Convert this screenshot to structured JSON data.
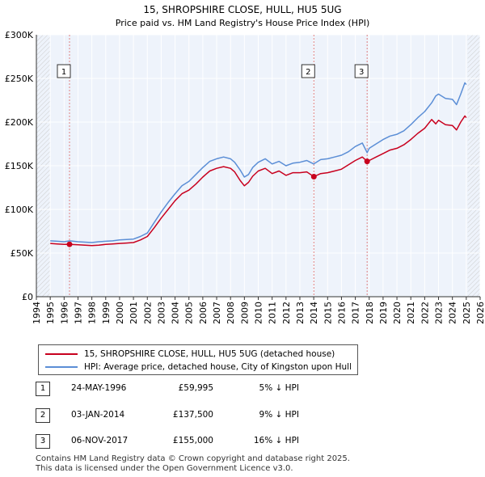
{
  "chart_data": {
    "type": "line",
    "title": "15, SHROPSHIRE CLOSE, HULL, HU5 5UG",
    "subtitle": "Price paid vs. HM Land Registry's House Price Index (HPI)",
    "xlabel": "",
    "ylabel": "",
    "xlim": [
      1994,
      2026
    ],
    "ylim": [
      0,
      300000
    ],
    "x_ticks": [
      "1994",
      "1995",
      "1996",
      "1997",
      "1998",
      "1999",
      "2000",
      "2001",
      "2002",
      "2003",
      "2004",
      "2005",
      "2006",
      "2007",
      "2008",
      "2009",
      "2010",
      "2011",
      "2012",
      "2013",
      "2014",
      "2015",
      "2016",
      "2017",
      "2018",
      "2019",
      "2020",
      "2021",
      "2022",
      "2023",
      "2024",
      "2025",
      "2026"
    ],
    "y_ticks": [
      {
        "value": 0,
        "label": "£0"
      },
      {
        "value": 50000,
        "label": "£50K"
      },
      {
        "value": 100000,
        "label": "£100K"
      },
      {
        "value": 150000,
        "label": "£150K"
      },
      {
        "value": 200000,
        "label": "£200K"
      },
      {
        "value": 250000,
        "label": "£250K"
      },
      {
        "value": 300000,
        "label": "£300K"
      }
    ],
    "series": [
      {
        "name": "HPI: Average price, detached house, City of Kingston upon Hull",
        "color": "#5b8ed6",
        "x": [
          1995.0,
          1995.5,
          1996.0,
          1996.4,
          1997.0,
          1997.5,
          1998.0,
          1998.5,
          1999.0,
          1999.5,
          2000.0,
          2000.5,
          2001.0,
          2001.5,
          2002.0,
          2002.5,
          2003.0,
          2003.5,
          2004.0,
          2004.5,
          2005.0,
          2005.5,
          2006.0,
          2006.5,
          2007.0,
          2007.5,
          2008.0,
          2008.3,
          2008.7,
          2009.0,
          2009.3,
          2009.6,
          2010.0,
          2010.5,
          2011.0,
          2011.5,
          2012.0,
          2012.5,
          2013.0,
          2013.5,
          2014.0,
          2014.5,
          2015.0,
          2015.5,
          2016.0,
          2016.5,
          2017.0,
          2017.5,
          2017.85,
          2018.0,
          2018.5,
          2019.0,
          2019.5,
          2020.0,
          2020.5,
          2021.0,
          2021.5,
          2022.0,
          2022.5,
          2022.8,
          2023.0,
          2023.5,
          2024.0,
          2024.3,
          2024.6,
          2024.9,
          2025.0
        ],
        "values": [
          64000,
          63500,
          63000,
          64000,
          63000,
          62500,
          62000,
          63000,
          63500,
          64000,
          65000,
          65500,
          66000,
          69000,
          73000,
          85000,
          97000,
          108000,
          118000,
          127000,
          132000,
          140000,
          148000,
          155000,
          158000,
          160000,
          158000,
          154000,
          145000,
          137000,
          140000,
          148000,
          154000,
          158000,
          152000,
          155000,
          150000,
          153000,
          154000,
          156000,
          152000,
          157000,
          158000,
          160000,
          162000,
          166000,
          172000,
          176000,
          165000,
          170000,
          175000,
          180000,
          184000,
          186000,
          190000,
          197000,
          205000,
          212000,
          222000,
          230000,
          232000,
          227000,
          226000,
          220000,
          232000,
          245000,
          243000
        ]
      },
      {
        "name": "15, SHROPSHIRE CLOSE, HULL, HU5 5UG (detached house)",
        "color": "#c8001e",
        "x": [
          1995.0,
          1995.5,
          1996.0,
          1996.4,
          1997.0,
          1997.5,
          1998.0,
          1998.5,
          1999.0,
          1999.5,
          2000.0,
          2000.5,
          2001.0,
          2001.5,
          2002.0,
          2002.5,
          2003.0,
          2003.5,
          2004.0,
          2004.5,
          2005.0,
          2005.5,
          2006.0,
          2006.5,
          2007.0,
          2007.5,
          2008.0,
          2008.3,
          2008.7,
          2009.0,
          2009.3,
          2009.6,
          2010.0,
          2010.5,
          2011.0,
          2011.5,
          2012.0,
          2012.5,
          2013.0,
          2013.5,
          2014.01,
          2014.5,
          2015.0,
          2015.5,
          2016.0,
          2016.5,
          2017.0,
          2017.5,
          2017.85,
          2018.0,
          2018.5,
          2019.0,
          2019.5,
          2020.0,
          2020.5,
          2021.0,
          2021.5,
          2022.0,
          2022.5,
          2022.8,
          2023.0,
          2023.5,
          2024.0,
          2024.3,
          2024.6,
          2024.9,
          2025.0
        ],
        "values": [
          61000,
          60500,
          60000,
          59995,
          59500,
          59000,
          58500,
          59000,
          60000,
          60500,
          61000,
          61500,
          62000,
          65000,
          69000,
          79000,
          90000,
          100000,
          110000,
          118000,
          122000,
          129000,
          137000,
          144000,
          147000,
          149000,
          147000,
          143000,
          133000,
          127000,
          131000,
          138000,
          144000,
          147000,
          141000,
          144000,
          139000,
          142000,
          142000,
          143000,
          137500,
          141000,
          142000,
          144000,
          146000,
          151000,
          156000,
          160000,
          155000,
          156000,
          160000,
          164000,
          168000,
          170000,
          174000,
          180000,
          187000,
          193000,
          203000,
          198000,
          202000,
          197000,
          196000,
          191000,
          200000,
          207000,
          205000
        ]
      }
    ],
    "sales": [
      {
        "marker": "1",
        "x": 1996.39,
        "value": 59995
      },
      {
        "marker": "2",
        "x": 2014.01,
        "value": 137500
      },
      {
        "marker": "3",
        "x": 2017.85,
        "value": 155000
      }
    ]
  },
  "legend": {
    "property_label": "15, SHROPSHIRE CLOSE, HULL, HU5 5UG (detached house)",
    "hpi_label": "HPI: Average price, detached house, City of Kingston upon Hull",
    "property_color": "#c8001e",
    "hpi_color": "#5b8ed6"
  },
  "transactions": [
    {
      "num": "1",
      "date": "24-MAY-1996",
      "price": "£59,995",
      "hpi": "5% ↓ HPI"
    },
    {
      "num": "2",
      "date": "03-JAN-2014",
      "price": "£137,500",
      "hpi": "9% ↓ HPI"
    },
    {
      "num": "3",
      "date": "06-NOV-2017",
      "price": "£155,000",
      "hpi": "16% ↓ HPI"
    }
  ],
  "footer": {
    "line1": "Contains HM Land Registry data © Crown copyright and database right 2025.",
    "line2": "This data is licensed under the Open Government Licence v3.0."
  }
}
